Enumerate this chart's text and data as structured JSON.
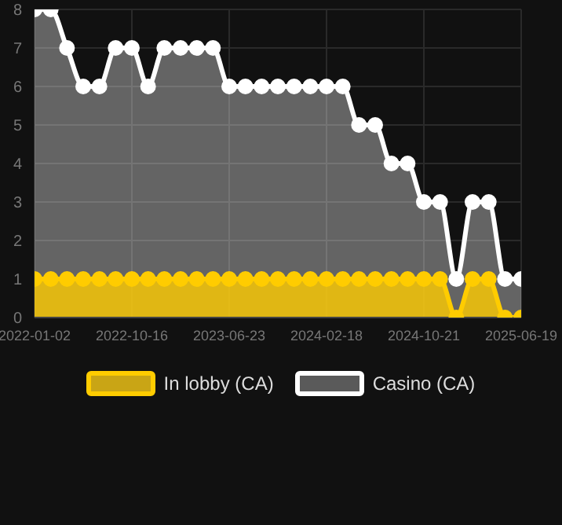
{
  "chart_data": {
    "type": "area",
    "categories": [
      "2022-01-02",
      null,
      null,
      null,
      null,
      null,
      "2022-10-16",
      null,
      null,
      null,
      null,
      null,
      "2023-06-23",
      null,
      null,
      null,
      null,
      null,
      "2024-02-18",
      null,
      null,
      null,
      null,
      null,
      "2024-10-21",
      null,
      null,
      null,
      null,
      null,
      "2025-06-19"
    ],
    "series": [
      {
        "name": "In lobby (CA)",
        "color": "#ffcc00",
        "values": [
          1,
          1,
          1,
          1,
          1,
          1,
          1,
          1,
          1,
          1,
          1,
          1,
          1,
          1,
          1,
          1,
          1,
          1,
          1,
          1,
          1,
          1,
          1,
          1,
          1,
          1,
          0,
          1,
          1,
          0,
          0
        ]
      },
      {
        "name": "Casino (CA)",
        "color": "#ffffff",
        "values": [
          8,
          8,
          7,
          6,
          6,
          7,
          7,
          6,
          7,
          7,
          7,
          7,
          6,
          6,
          6,
          6,
          6,
          6,
          6,
          6,
          5,
          5,
          4,
          4,
          3,
          3,
          1,
          3,
          3,
          1,
          1
        ]
      }
    ],
    "ylim": [
      0,
      8
    ],
    "yticks": [
      0,
      1,
      2,
      3,
      4,
      5,
      6,
      7,
      8
    ],
    "grid": true,
    "legend": "bottom",
    "marker": "circle",
    "line_style": "solid"
  }
}
